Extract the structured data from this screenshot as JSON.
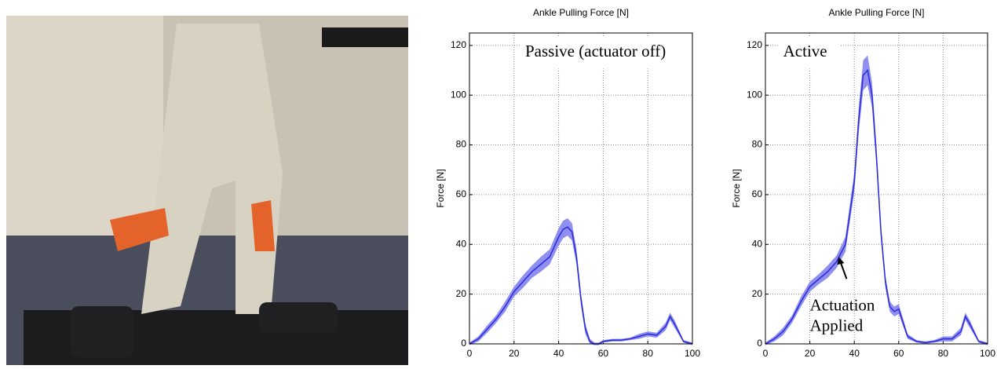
{
  "chart_data": [
    {
      "type": "line",
      "title": "Ankle Pulling Force [N]",
      "y_label": "Force [N]",
      "annotations": [
        {
          "text": [
            "Passive (actuator off)"
          ]
        }
      ],
      "x": [
        0,
        4,
        8,
        12,
        16,
        20,
        24,
        28,
        32,
        36,
        40,
        42,
        44,
        46,
        48,
        50,
        52,
        54,
        56,
        58,
        60,
        64,
        68,
        72,
        76,
        80,
        84,
        88,
        90,
        92,
        96,
        100
      ],
      "series": [
        {
          "color": "#2a2ad8",
          "band_color": "#7b7bf0",
          "values": [
            0,
            2,
            6,
            10,
            15,
            21,
            25,
            29,
            32,
            35,
            43,
            46,
            47,
            45,
            35,
            18,
            6,
            1,
            0,
            0,
            1,
            1.5,
            1.5,
            2,
            3,
            4,
            3.5,
            7,
            11,
            8,
            1,
            0
          ],
          "band": [
            0.5,
            1,
            1.5,
            1.5,
            2,
            2,
            2.5,
            2.5,
            3,
            3,
            3.5,
            3.5,
            3.5,
            3.5,
            3,
            2.5,
            2,
            1,
            0.5,
            0.5,
            0.5,
            0.5,
            0.5,
            0.5,
            1,
            1,
            1,
            1.5,
            1.5,
            1.5,
            0.5,
            0.5
          ]
        }
      ],
      "xlim": [
        0,
        100
      ],
      "xticks": [
        0,
        20,
        40,
        60,
        80,
        100
      ],
      "ylim": [
        0,
        125
      ],
      "yticks": [
        0,
        20,
        40,
        60,
        80,
        100,
        120
      ],
      "grid": true
    },
    {
      "type": "line",
      "title": "Ankle Pulling Force [N]",
      "y_label": "Force [N]",
      "annotations": [
        {
          "text": [
            "Active"
          ]
        },
        {
          "text": [
            "Actuation",
            "Applied"
          ],
          "arrow_to": [
            33,
            35
          ]
        }
      ],
      "x": [
        0,
        4,
        8,
        12,
        16,
        20,
        24,
        28,
        32,
        36,
        40,
        42,
        44,
        46,
        48,
        50,
        52,
        54,
        56,
        58,
        60,
        64,
        68,
        72,
        76,
        80,
        84,
        88,
        90,
        92,
        96,
        100
      ],
      "series": [
        {
          "color": "#2a2ad8",
          "band_color": "#7b7bf0",
          "values": [
            0,
            2,
            5,
            10,
            17,
            23,
            26,
            29,
            33,
            40,
            65,
            90,
            108,
            110,
            100,
            75,
            45,
            25,
            15,
            13,
            14,
            3,
            1,
            0.5,
            1,
            2,
            2,
            5,
            11,
            8,
            1,
            0
          ],
          "band": [
            0.5,
            1,
            1.5,
            1.5,
            2,
            2,
            2,
            2.5,
            2.5,
            3,
            4,
            5,
            6,
            6,
            5,
            4,
            3,
            2.5,
            2,
            2,
            2,
            1,
            0.5,
            0.5,
            0.5,
            1,
            1,
            1.5,
            1.5,
            1.5,
            0.5,
            0.5
          ]
        }
      ],
      "xlim": [
        0,
        100
      ],
      "xticks": [
        0,
        20,
        40,
        60,
        80,
        100
      ],
      "ylim": [
        0,
        125
      ],
      "yticks": [
        0,
        20,
        40,
        60,
        80,
        100,
        120
      ],
      "grid": true
    }
  ]
}
